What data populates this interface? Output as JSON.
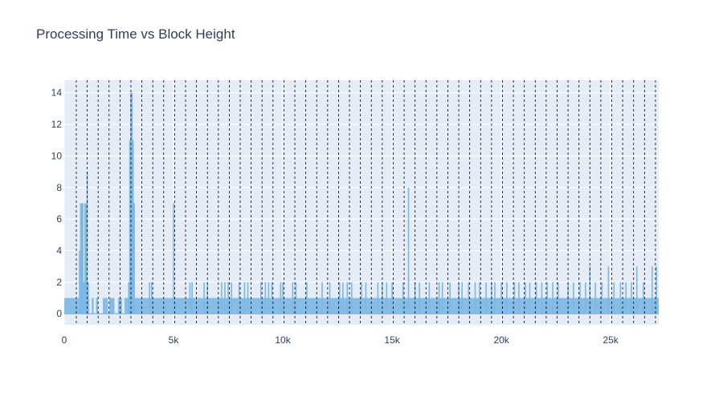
{
  "chart_data": {
    "type": "area",
    "title": "Processing Time vs Block Height",
    "xlabel": "",
    "ylabel": "",
    "xlim": [
      0,
      27200
    ],
    "ylim": [
      -0.7,
      14.8
    ],
    "x_ticks": [
      0,
      5000,
      10000,
      15000,
      20000,
      25000
    ],
    "x_tick_labels": [
      "0",
      "5k",
      "10k",
      "15k",
      "20k",
      "25k"
    ],
    "y_ticks": [
      0,
      2,
      4,
      6,
      8,
      10,
      12,
      14
    ],
    "y_tick_labels": [
      "0",
      "2",
      "4",
      "6",
      "8",
      "10",
      "12",
      "14"
    ],
    "grid": true,
    "vertical_markers": {
      "style": "dashed",
      "color": "#000000",
      "x": [
        550,
        1050,
        1550,
        2050,
        2550,
        3050,
        3550,
        4050,
        4550,
        5050,
        5550,
        6050,
        6550,
        7050,
        7550,
        8050,
        8550,
        9050,
        9550,
        10050,
        10550,
        11050,
        11550,
        12050,
        12550,
        13050,
        13550,
        14050,
        14550,
        15050,
        15550,
        16050,
        16550,
        17050,
        17550,
        18050,
        18550,
        19050,
        19550,
        20050,
        20550,
        21050,
        21550,
        22050,
        22550,
        23050,
        23550,
        24050,
        24550,
        25050,
        25550,
        26050,
        26550,
        27050
      ]
    },
    "series": [
      {
        "color": "#7ab8e6",
        "baseline": 1,
        "spikes": [
          [
            700,
            4
          ],
          [
            750,
            7
          ],
          [
            800,
            7
          ],
          [
            850,
            7
          ],
          [
            900,
            2
          ],
          [
            950,
            7
          ],
          [
            1000,
            7
          ],
          [
            1050,
            9
          ],
          [
            1100,
            2
          ],
          [
            1800,
            1
          ],
          [
            2100,
            1
          ],
          [
            2250,
            1
          ],
          [
            2950,
            2
          ],
          [
            3000,
            11
          ],
          [
            3050,
            14
          ],
          [
            3100,
            14
          ],
          [
            3150,
            11
          ],
          [
            3200,
            7
          ],
          [
            3900,
            2
          ],
          [
            4000,
            2
          ],
          [
            5000,
            7
          ],
          [
            5750,
            2
          ],
          [
            5850,
            2
          ],
          [
            6400,
            2
          ],
          [
            6550,
            2
          ],
          [
            7200,
            2
          ],
          [
            7350,
            2
          ],
          [
            7500,
            2
          ],
          [
            7650,
            2
          ],
          [
            8000,
            2
          ],
          [
            8250,
            2
          ],
          [
            8400,
            2
          ],
          [
            9000,
            2
          ],
          [
            9200,
            2
          ],
          [
            9350,
            2
          ],
          [
            9500,
            2
          ],
          [
            9900,
            2
          ],
          [
            10000,
            2
          ],
          [
            10450,
            2
          ],
          [
            10600,
            2
          ],
          [
            11100,
            2
          ],
          [
            11800,
            2
          ],
          [
            12150,
            2
          ],
          [
            12600,
            2
          ],
          [
            12750,
            2
          ],
          [
            12950,
            2
          ],
          [
            13150,
            2
          ],
          [
            13600,
            2
          ],
          [
            13800,
            2
          ],
          [
            14350,
            2
          ],
          [
            14550,
            2
          ],
          [
            14750,
            2
          ],
          [
            15000,
            2
          ],
          [
            15500,
            2
          ],
          [
            15750,
            8
          ],
          [
            16050,
            2
          ],
          [
            16250,
            2
          ],
          [
            16700,
            2
          ],
          [
            17150,
            2
          ],
          [
            17300,
            2
          ],
          [
            17650,
            2
          ],
          [
            18050,
            2
          ],
          [
            18200,
            2
          ],
          [
            18500,
            2
          ],
          [
            18800,
            2
          ],
          [
            19000,
            2
          ],
          [
            19300,
            2
          ],
          [
            19550,
            2
          ],
          [
            19700,
            2
          ],
          [
            20000,
            2
          ],
          [
            20250,
            2
          ],
          [
            20600,
            2
          ],
          [
            20800,
            2
          ],
          [
            21100,
            2
          ],
          [
            21300,
            2
          ],
          [
            21600,
            2
          ],
          [
            21850,
            2
          ],
          [
            22100,
            2
          ],
          [
            22350,
            2
          ],
          [
            22600,
            2
          ],
          [
            23050,
            2
          ],
          [
            23300,
            2
          ],
          [
            23600,
            2
          ],
          [
            23850,
            2
          ],
          [
            24050,
            3
          ],
          [
            24300,
            2
          ],
          [
            24600,
            2
          ],
          [
            24900,
            3
          ],
          [
            25150,
            2
          ],
          [
            25450,
            2
          ],
          [
            25700,
            2
          ],
          [
            25950,
            2
          ],
          [
            26200,
            3
          ],
          [
            26500,
            2
          ],
          [
            26900,
            3
          ],
          [
            27100,
            3
          ]
        ],
        "dips": [
          1200,
          1400,
          1600,
          1650,
          1750,
          2050,
          2350,
          2400,
          2700
        ]
      }
    ]
  }
}
